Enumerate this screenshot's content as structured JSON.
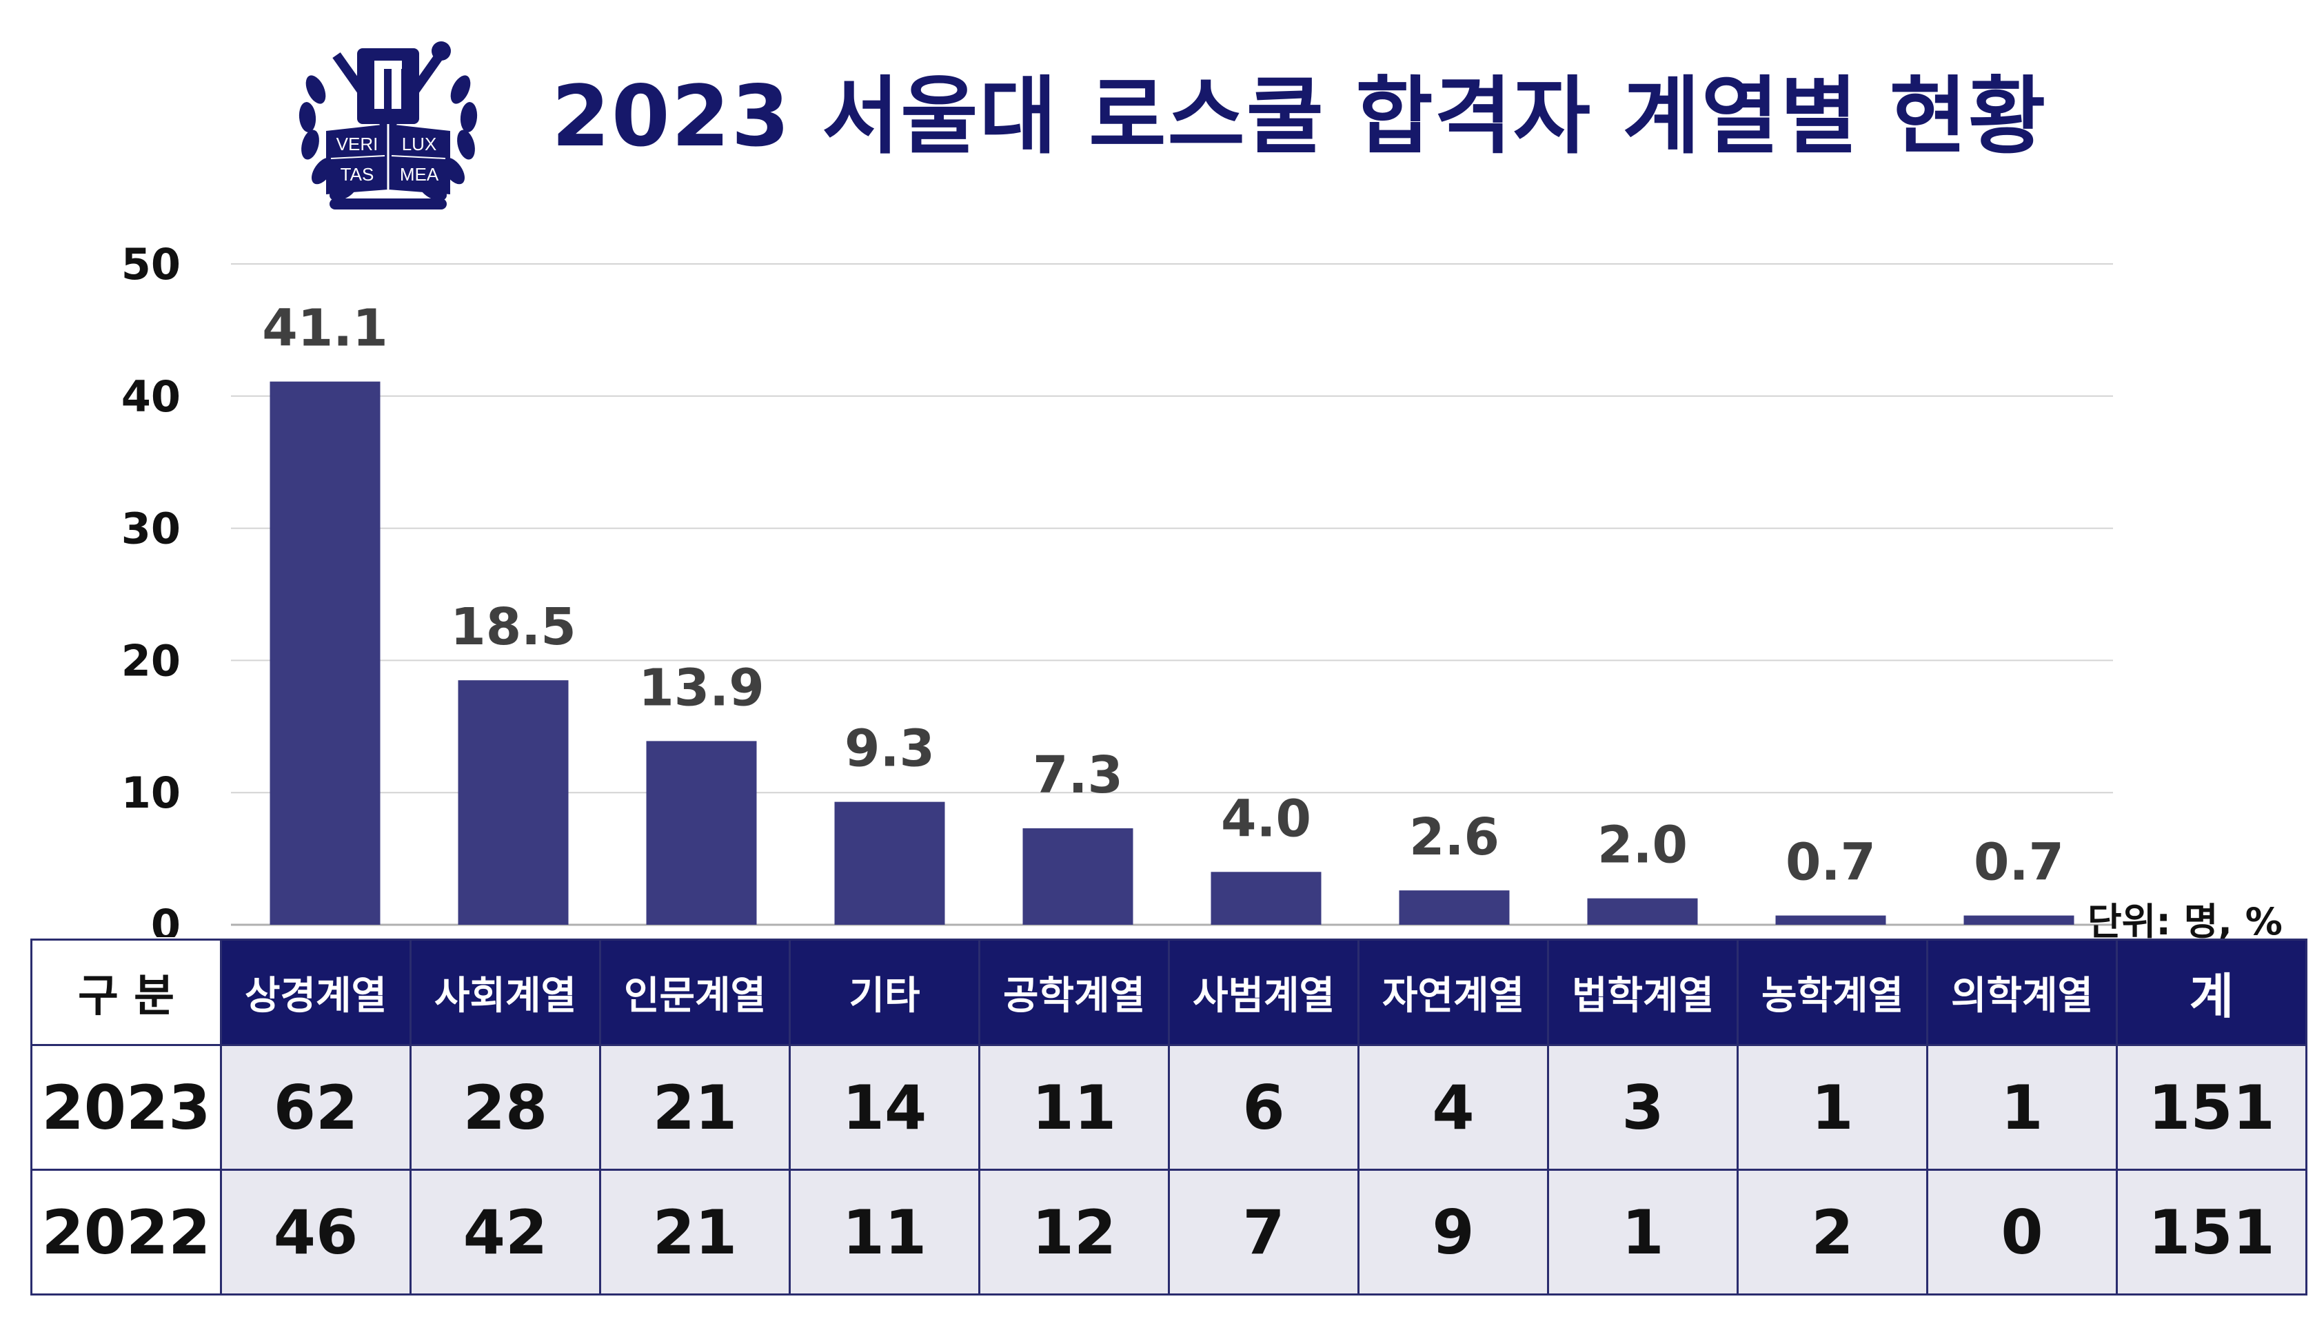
{
  "title": "2023 서울대 로스쿨 합격자 계열별 현황",
  "logo": {
    "words": [
      "VERI",
      "LUX",
      "TAS",
      "MEA"
    ],
    "accent": "#16186a"
  },
  "unit_label": "단위: 명, %",
  "colors": {
    "bar": "#3b3b80",
    "title": "#16186a",
    "table_header": "#16186a",
    "table_cell": "#e8e8f0"
  },
  "chart_data": {
    "type": "bar",
    "title": "2023 서울대 로스쿨 합격자 계열별 현황",
    "categories": [
      "상경계열",
      "사회계열",
      "인문계열",
      "기타",
      "공학계열",
      "사범계열",
      "자연계열",
      "법학계열",
      "농학계열",
      "의학계열"
    ],
    "values": [
      41.1,
      18.5,
      13.9,
      9.3,
      7.3,
      4.0,
      2.6,
      2.0,
      0.7,
      0.7
    ],
    "value_labels": [
      "41.1",
      "18.5",
      "13.9",
      "9.3",
      "7.3",
      "4.0",
      "2.6",
      "2.0",
      "0.7",
      "0.7"
    ],
    "yticks": [
      "0",
      "10",
      "20",
      "30",
      "40",
      "50"
    ],
    "ylim": [
      0,
      50
    ],
    "grid": true,
    "xlabel": "",
    "ylabel": "단위: 명, %"
  },
  "table": {
    "corner": "구 분",
    "headers": [
      "상경계열",
      "사회계열",
      "인문계열",
      "기타",
      "공학계열",
      "사범계열",
      "자연계열",
      "법학계열",
      "농학계열",
      "의학계열",
      "계"
    ],
    "rows": [
      {
        "year": "2023",
        "cells": [
          "62",
          "28",
          "21",
          "14",
          "11",
          "6",
          "4",
          "3",
          "1",
          "1",
          "151"
        ]
      },
      {
        "year": "2022",
        "cells": [
          "46",
          "42",
          "21",
          "11",
          "12",
          "7",
          "9",
          "1",
          "2",
          "0",
          "151"
        ]
      }
    ]
  }
}
